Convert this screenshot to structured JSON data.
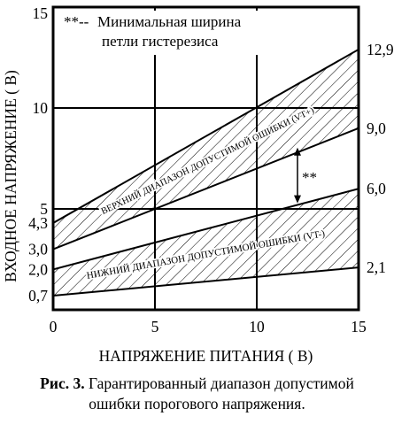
{
  "chart_data": {
    "type": "area",
    "xlabel": "НАПРЯЖЕНИЕ ПИТАНИЯ ( В)",
    "ylabel": "ВХОДНОЕ НАПРЯЖЕНИЕ ( В)",
    "xlim": [
      0,
      15
    ],
    "ylim": [
      0,
      15
    ],
    "x_ticks": [
      "0",
      "5",
      "10",
      "15"
    ],
    "y_ticks_left": [
      "0,7",
      "2,0",
      "3,0",
      "4,3",
      "5",
      "10",
      "15"
    ],
    "y_ticks_right": [
      "2,1",
      "6,0",
      "9,0",
      "12,9"
    ],
    "grid": true,
    "series": [
      {
        "name": "ВЕРХНИЙ ДИАПАЗОН ДОПУСТИМОЙ ОШИБКИ (VT+)",
        "x": [
          0,
          15
        ],
        "upper": [
          4.3,
          12.9
        ],
        "lower": [
          3.0,
          9.0
        ]
      },
      {
        "name": "НИЖНИЙ ДИАПАЗОН ДОПУСТИМОЙ ОШИБКИ (VT-)",
        "x": [
          0,
          15
        ],
        "upper": [
          2.0,
          6.0
        ],
        "lower": [
          0.7,
          2.1
        ]
      }
    ],
    "annotation": {
      "legend_marker": "**--",
      "legend_line1": "Минимальная ширина",
      "legend_line2": "петли гистерезиса",
      "marker": "**",
      "x": 12,
      "from": 5.28,
      "to": 8.04
    }
  },
  "caption": {
    "label": "Рис. 3.",
    "line1": "Гарантированный диапазон допустимой",
    "line2": "ошибки порогового напряжения."
  }
}
